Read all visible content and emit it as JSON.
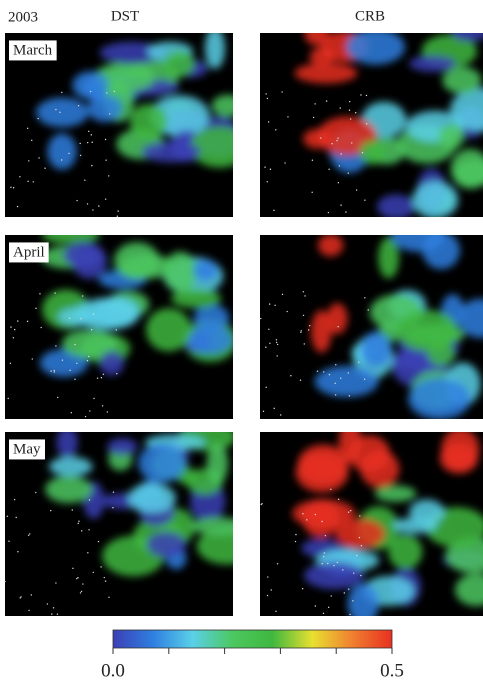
{
  "year": "2003",
  "columns": [
    "DST",
    "CRB"
  ],
  "rows": [
    "March",
    "April",
    "May"
  ],
  "colorbar": {
    "lim": [
      0,
      0.5
    ],
    "ticks": [
      {
        "value": 0,
        "label": "0.0"
      },
      0.5
    ],
    "minor_ticks": [
      0.1,
      0.2,
      0.3,
      0.4
    ],
    "colors": [
      "#3b3fb5",
      "#2f7fe0",
      "#5ad0e8",
      "#4cc860",
      "#3fb83f",
      "#e8e030",
      "#f08030",
      "#e83020"
    ]
  }
}
